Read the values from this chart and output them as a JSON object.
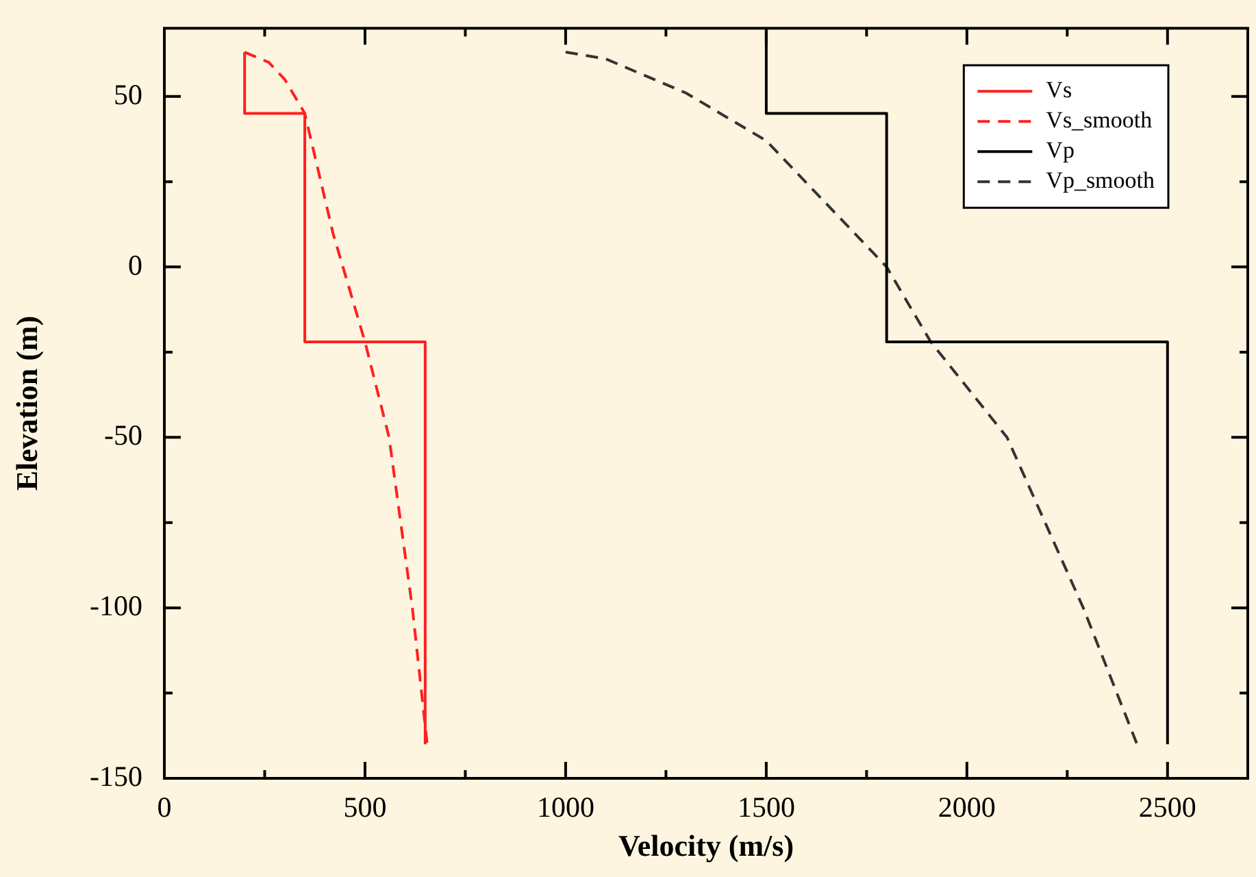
{
  "chart_data": {
    "type": "line",
    "xlabel": "Velocity (m/s)",
    "ylabel": "Elevation (m)",
    "xlim": [
      0,
      2700
    ],
    "xticks": [
      0,
      500,
      1000,
      1500,
      2000,
      2500
    ],
    "ylim": [
      -150,
      70
    ],
    "yticks": [
      -150,
      -100,
      -50,
      0,
      50
    ],
    "legend": "top right",
    "series": [
      {
        "name": "Vs",
        "type": "step",
        "color": "#ff2020",
        "line_style": "solid",
        "x": [
          200,
          350,
          650,
          650
        ],
        "values": [
          63,
          45,
          -22,
          -140
        ]
      },
      {
        "name": "Vs_smooth",
        "color": "#ff2020",
        "line_style": "dashed",
        "x": [
          200,
          260,
          300,
          350,
          420,
          500,
          560,
          618,
          655
        ],
        "values": [
          63,
          60,
          55,
          45,
          10,
          -22,
          -50,
          -100,
          -140
        ]
      },
      {
        "name": "Vp",
        "type": "step",
        "color": "#000000",
        "line_style": "solid",
        "x": [
          1500,
          1800,
          2500,
          2500
        ],
        "values": [
          70,
          45,
          -22,
          -140
        ]
      },
      {
        "name": "Vp_smooth",
        "color": "#333333",
        "line_style": "dashed",
        "x": [
          1000,
          1100,
          1300,
          1500,
          1800,
          1910,
          2100,
          2290,
          2424
        ],
        "values": [
          63,
          61,
          51,
          37,
          0,
          -22,
          -50,
          -100,
          -140
        ]
      }
    ]
  }
}
